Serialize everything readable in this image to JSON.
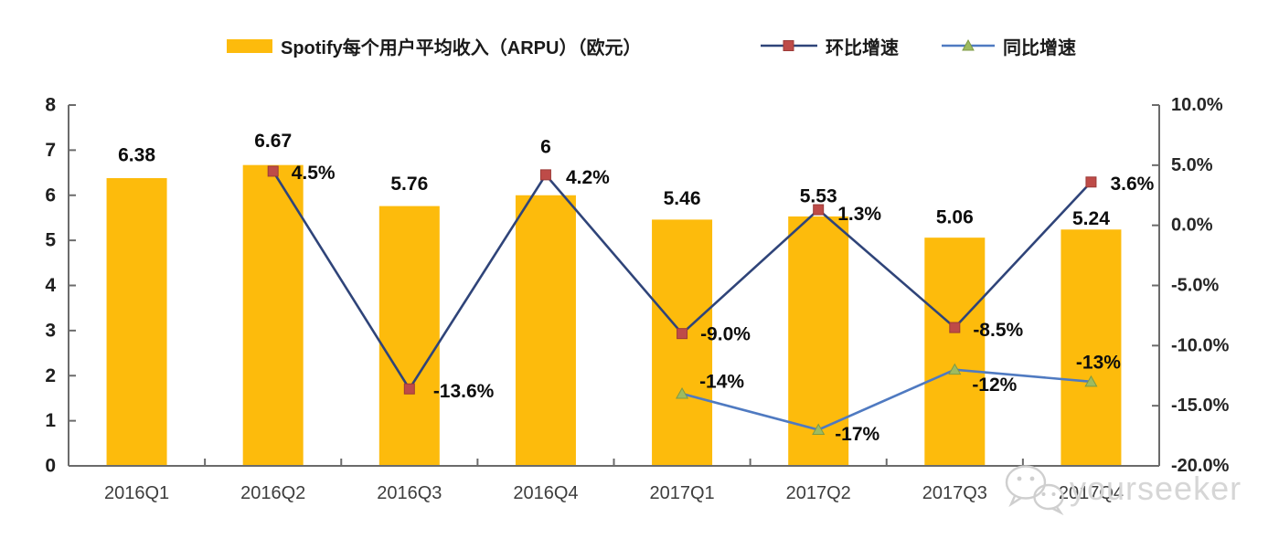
{
  "legend": {
    "bars_label": "Spotify每个用户平均收入（ARPU）（欧元）",
    "qoq_label": "环比增速",
    "yoy_label": "同比增速"
  },
  "watermark": {
    "text": "yourseeker",
    "icon": "wechat-icon"
  },
  "colors": {
    "bar": "#FDBB0C",
    "qoq_line": "#2F4479",
    "qoq_marker": "#BE4B48",
    "qoq_marker_edge": "#9C3B38",
    "yoy_line": "#4F7AC1",
    "yoy_marker": "#9DBB61",
    "yoy_marker_edge": "#7E9A44",
    "axis": "#6b6b6b",
    "watermark_gray": "#d6d6d6"
  },
  "chart_data": {
    "type": "bar+line combo",
    "categories": [
      "2016Q1",
      "2016Q2",
      "2016Q3",
      "2016Q4",
      "2017Q1",
      "2017Q2",
      "2017Q3",
      "2017Q4"
    ],
    "left_axis": {
      "min": 0,
      "max": 8,
      "step": 1,
      "ticks": [
        "0",
        "1",
        "2",
        "3",
        "4",
        "5",
        "6",
        "7",
        "8"
      ]
    },
    "right_axis": {
      "min": -20,
      "max": 10,
      "step": 5,
      "ticks": [
        "10.0%",
        "5.0%",
        "0.0%",
        "-5.0%",
        "-10.0%",
        "-15.0%",
        "-20.0%"
      ],
      "tick_values": [
        10,
        5,
        0,
        -5,
        -10,
        -15,
        -20
      ]
    },
    "grid": false,
    "legend_position": "top",
    "series": [
      {
        "name": "Spotify每个用户平均收入（ARPU）（欧元）",
        "type": "bar",
        "axis": "left",
        "values": [
          6.38,
          6.67,
          5.76,
          6,
          5.46,
          5.53,
          5.06,
          5.24
        ],
        "labels": [
          "6.38",
          "6.67",
          "5.76",
          "6",
          "5.46",
          "5.53",
          "5.06",
          "5.24"
        ],
        "label_dy": [
          -25,
          -26,
          -24,
          -53,
          -23,
          -22,
          -22,
          -12
        ]
      },
      {
        "name": "环比增速",
        "type": "line",
        "axis": "right",
        "marker": "square",
        "points": [
          {
            "category": "2016Q2",
            "value": 4.5,
            "label": "4.5%",
            "dx": 20,
            "dy": 2,
            "anchor": "start"
          },
          {
            "category": "2016Q3",
            "value": -13.6,
            "label": "-13.6%",
            "dx": 26,
            "dy": 3,
            "anchor": "start"
          },
          {
            "category": "2016Q4",
            "value": 4.2,
            "label": "4.2%",
            "dx": 22,
            "dy": 3,
            "anchor": "start"
          },
          {
            "category": "2017Q1",
            "value": -9.0,
            "label": "-9.0%",
            "dx": 20,
            "dy": 1,
            "anchor": "start"
          },
          {
            "category": "2017Q2",
            "value": 1.3,
            "label": "1.3%",
            "dx": 21,
            "dy": 5,
            "anchor": "start"
          },
          {
            "category": "2017Q3",
            "value": -8.5,
            "label": "-8.5%",
            "dx": 20,
            "dy": 3,
            "anchor": "start"
          },
          {
            "category": "2017Q4",
            "value": 3.6,
            "label": "3.6%",
            "dx": 21,
            "dy": 2,
            "anchor": "start"
          }
        ]
      },
      {
        "name": "同比增速",
        "type": "line",
        "axis": "right",
        "marker": "triangle",
        "points": [
          {
            "category": "2017Q1",
            "value": -14,
            "label": "-14%",
            "dx": 19,
            "dy": -13,
            "anchor": "start"
          },
          {
            "category": "2017Q2",
            "value": -17,
            "label": "-17%",
            "dx": 18,
            "dy": 5,
            "anchor": "start"
          },
          {
            "category": "2017Q3",
            "value": -12,
            "label": "-12%",
            "dx": 19,
            "dy": 17,
            "anchor": "start"
          },
          {
            "category": "2017Q4",
            "value": -13,
            "label": "-13%",
            "dx": 8,
            "dy": -21,
            "anchor": "middle"
          }
        ]
      }
    ]
  }
}
